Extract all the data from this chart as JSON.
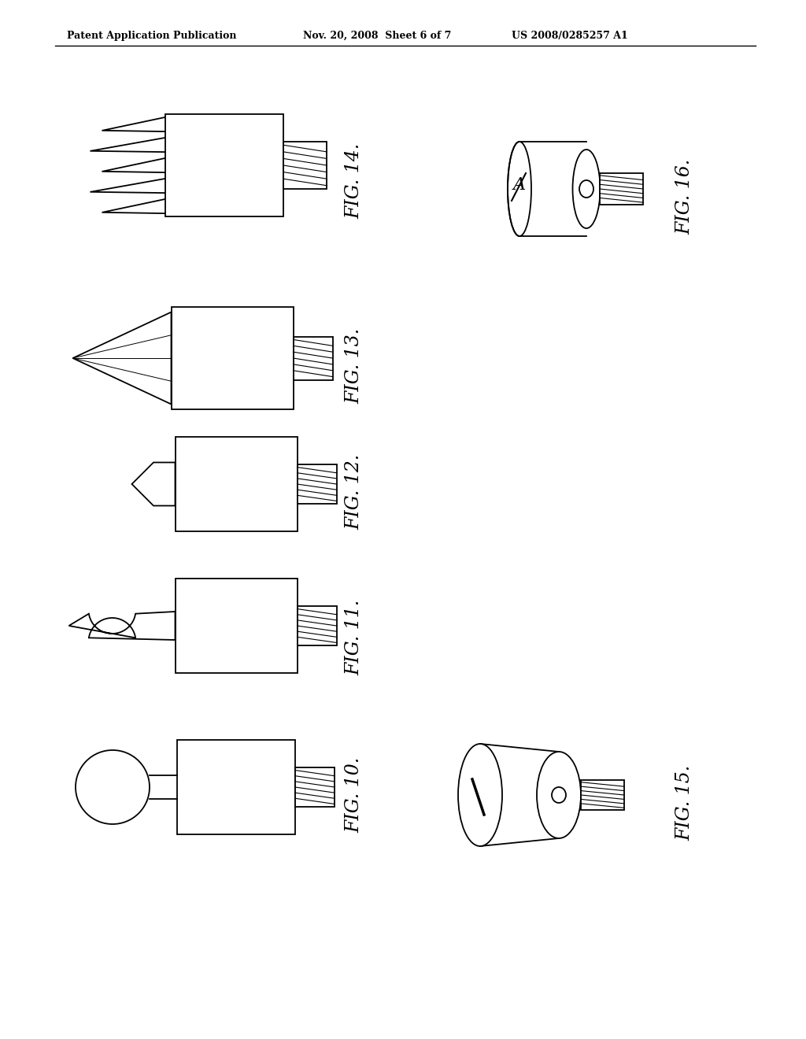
{
  "background_color": "#ffffff",
  "header_text": "Patent Application Publication",
  "header_date": "Nov. 20, 2008  Sheet 6 of 7",
  "header_patent": "US 2008/0285257 A1",
  "line_color": "#000000",
  "stipple_color": "#aaaaaa"
}
